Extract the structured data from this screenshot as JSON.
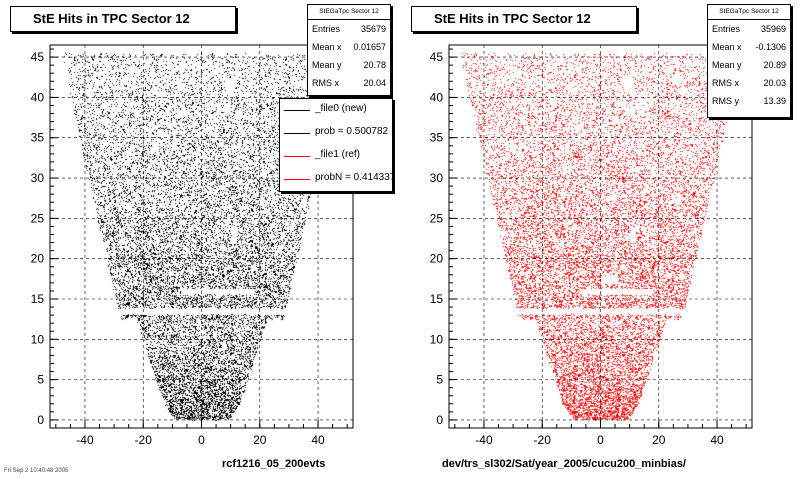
{
  "chart_data": [
    {
      "type": "scatter",
      "title": "StE Hits in TPC Sector 12",
      "color": "#000000",
      "xlim": [
        -52,
        52
      ],
      "ylim": [
        -1,
        46.5
      ],
      "xticks": [
        -40,
        -20,
        0,
        20,
        40
      ],
      "yticks": [
        0,
        5,
        10,
        15,
        20,
        25,
        30,
        35,
        40,
        45
      ],
      "ytick_labels": [
        "0",
        "5",
        "10",
        "15",
        "20",
        "25",
        "30",
        "35",
        "40",
        "45"
      ],
      "grid": true,
      "xlabel": "rcf1216_05_200evts",
      "stats": {
        "header": "StEGaTpc Sector 12",
        "rows": [
          {
            "label": "Entries",
            "value": "35679"
          },
          {
            "label": "Mean x",
            "value": "0.01657"
          },
          {
            "label": "Mean y",
            "value": "20.78"
          },
          {
            "label": "RMS x",
            "value": "20.04"
          }
        ]
      },
      "legend": [
        {
          "label": "_file0 (new)",
          "color": "#000000"
        },
        {
          "label": "prob = 0.500782",
          "color": "#000000"
        },
        {
          "label": "_file1 (ref)",
          "color": "#ff0000"
        },
        {
          "label": "probN = 0.414337",
          "color": "#ff0000"
        }
      ]
    },
    {
      "type": "scatter",
      "title": "StE Hits in TPC Sector 12",
      "color": "#ff0000",
      "xlim": [
        -52,
        52
      ],
      "ylim": [
        -1,
        46.5
      ],
      "xticks": [
        -40,
        -20,
        0,
        20,
        40
      ],
      "yticks": [
        0,
        5,
        10,
        15,
        20,
        25,
        30,
        35,
        40,
        45
      ],
      "ytick_labels": [
        "0",
        "5",
        "10",
        "15",
        "20",
        "25",
        "30",
        "35",
        "40",
        "45"
      ],
      "grid": true,
      "xlabel": "dev/trs_sl302/Sat/year_2005/cucu200_minbias/",
      "stats": {
        "header": "StEGaTpc Sector 12",
        "rows": [
          {
            "label": "Entries",
            "value": "35969"
          },
          {
            "label": "Mean x",
            "value": "-0.1306"
          },
          {
            "label": "Mean y",
            "value": "20.89"
          },
          {
            "label": "RMS x",
            "value": "20.03"
          },
          {
            "label": "RMS y",
            "value": "13.39"
          }
        ]
      }
    }
  ],
  "footer": "Fri Sep 2 10:40:48 2005"
}
